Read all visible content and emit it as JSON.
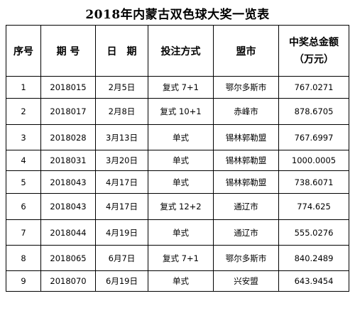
{
  "title": "2018年内蒙古双色球大奖一览表",
  "table": {
    "headers": {
      "seq": "序号",
      "period": "期 号",
      "date": "日　期",
      "method": "投注方式",
      "league": "盟市",
      "prize_line1": "中奖总金额",
      "prize_line2": "（万元）"
    },
    "rows": [
      {
        "seq": "1",
        "period": "2018015",
        "date": "2月5日",
        "method": "复式 7+1",
        "league": "鄂尔多斯市",
        "amount": "767.0271"
      },
      {
        "seq": "2",
        "period": "2018017",
        "date": "2月8日",
        "method": "复式 10+1",
        "league": "赤峰市",
        "amount": "878.6705"
      },
      {
        "seq": "3",
        "period": "2018028",
        "date": "3月13日",
        "method": "单式",
        "league": "锡林郭勒盟",
        "amount": "767.6997"
      },
      {
        "seq": "4",
        "period": "2018031",
        "date": "3月20日",
        "method": "单式",
        "league": "锡林郭勒盟",
        "amount": "1000.0005"
      },
      {
        "seq": "5",
        "period": "2018043",
        "date": "4月17日",
        "method": "单式",
        "league": "锡林郭勒盟",
        "amount": "738.6071"
      },
      {
        "seq": "6",
        "period": "2018043",
        "date": "4月17日",
        "method": "复式 12+2",
        "league": "通辽市",
        "amount": "774.625"
      },
      {
        "seq": "7",
        "period": "2018044",
        "date": "4月19日",
        "method": "单式",
        "league": "通辽市",
        "amount": "555.0276"
      },
      {
        "seq": "8",
        "period": "2018065",
        "date": "6月7日",
        "method": "复式 7+1",
        "league": "鄂尔多斯市",
        "amount": "840.2489"
      },
      {
        "seq": "9",
        "period": "2018070",
        "date": "6月19日",
        "method": "单式",
        "league": "兴安盟",
        "amount": "643.9454"
      }
    ]
  }
}
